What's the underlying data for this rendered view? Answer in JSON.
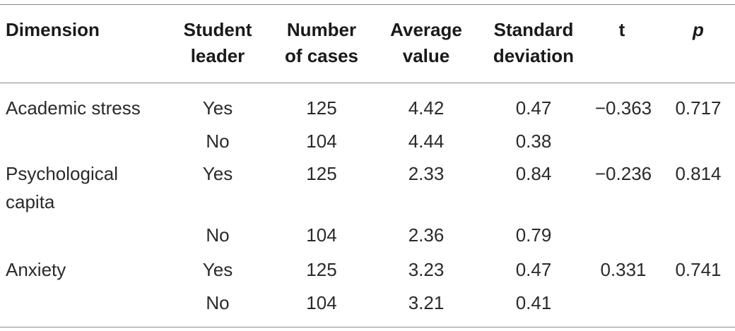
{
  "table": {
    "headers": {
      "dimension": "Dimension",
      "student_leader_1": "Student",
      "student_leader_2": "leader",
      "cases_1": "Number",
      "cases_2": "of cases",
      "average_1": "Average",
      "average_2": "value",
      "sd_1": "Standard",
      "sd_2": "deviation",
      "t": "t",
      "p": "p"
    },
    "rows": [
      {
        "dimension": "Academic stress",
        "leader": "Yes",
        "cases": "125",
        "average": "4.42",
        "sd": "0.47",
        "t": "−0.363",
        "p": "0.717"
      },
      {
        "dimension": "",
        "leader": "No",
        "cases": "104",
        "average": "4.44",
        "sd": "0.38",
        "t": "",
        "p": ""
      },
      {
        "dimension": "Psychological capita",
        "leader": "Yes",
        "cases": "125",
        "average": "2.33",
        "sd": "0.84",
        "t": "−0.236",
        "p": "0.814"
      },
      {
        "dimension": "",
        "leader": "No",
        "cases": "104",
        "average": "2.36",
        "sd": "0.79",
        "t": "",
        "p": ""
      },
      {
        "dimension": "Anxiety",
        "leader": "Yes",
        "cases": "125",
        "average": "3.23",
        "sd": "0.47",
        "t": "0.331",
        "p": "0.741"
      },
      {
        "dimension": "",
        "leader": "No",
        "cases": "104",
        "average": "3.21",
        "sd": "0.41",
        "t": "",
        "p": ""
      }
    ]
  }
}
